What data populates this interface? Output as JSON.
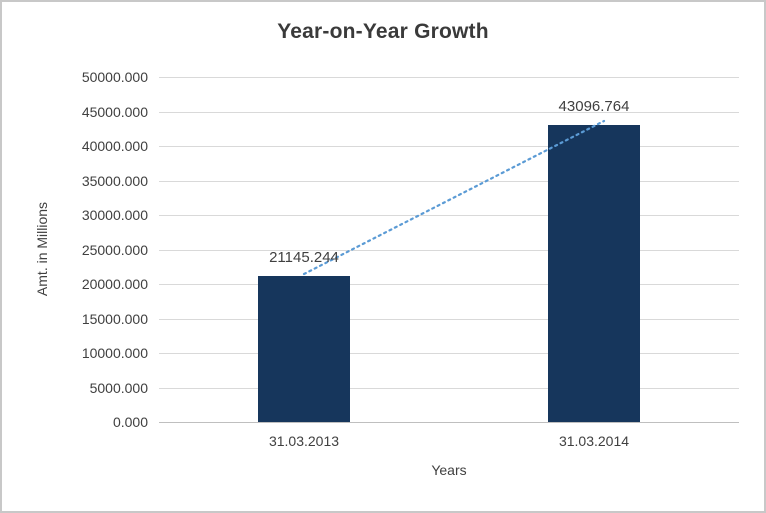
{
  "chart_data": {
    "type": "bar",
    "title": "Year-on-Year Growth",
    "categories": [
      "31.03.2013",
      "31.03.2014"
    ],
    "values": [
      21145.244,
      43096.764
    ],
    "data_labels": [
      "21145.244",
      "43096.764"
    ],
    "xlabel": "Years",
    "ylabel": "Amt. in Millions",
    "ylim": [
      0,
      50000
    ],
    "ytick_step": 5000,
    "ytick_labels": [
      "0.000",
      "5000.000",
      "10000.000",
      "15000.000",
      "20000.000",
      "25000.000",
      "30000.000",
      "35000.000",
      "40000.000",
      "45000.000",
      "50000.000"
    ],
    "grid": true,
    "legend_position": "none",
    "bar_color": "#16365C",
    "trendline": {
      "type": "linear",
      "style": "dotted",
      "color": "#5B9BD5"
    },
    "gridline_color": "#D9D9D9",
    "title_color": "#3A3A3A",
    "axis_text_color": "#404040"
  }
}
